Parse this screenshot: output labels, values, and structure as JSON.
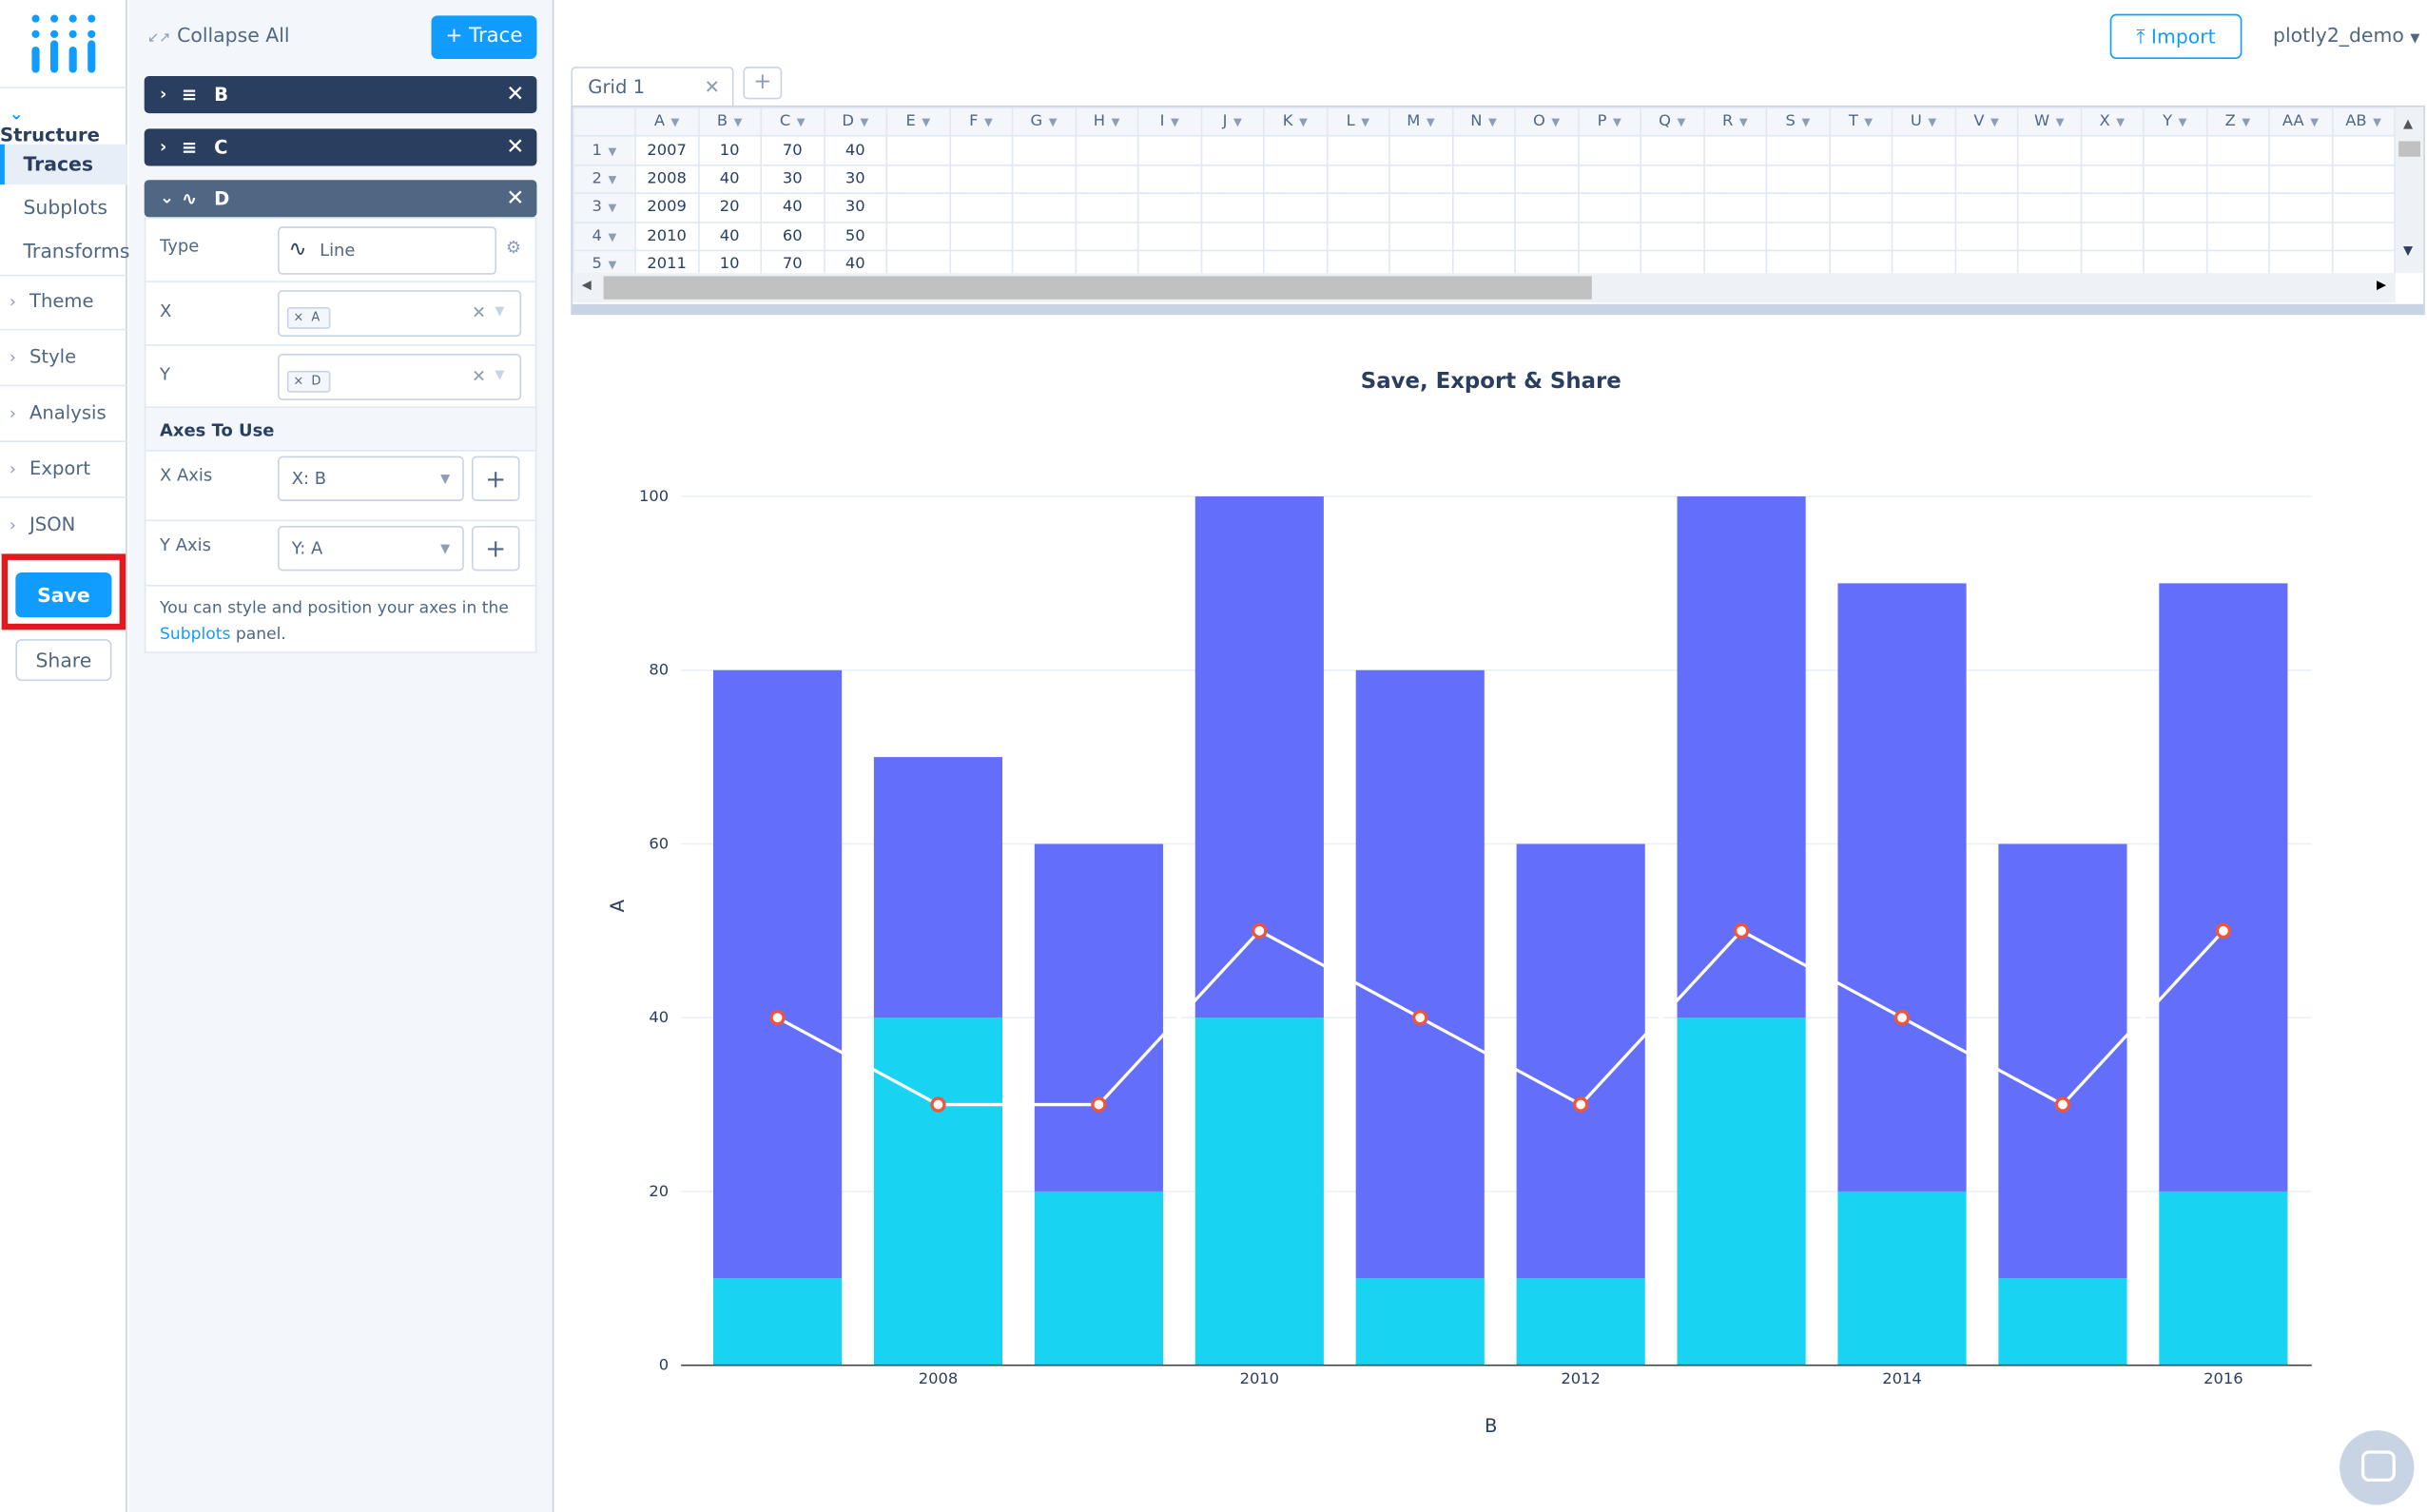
{
  "nav": {
    "structure_label": "Structure",
    "items": [
      {
        "label": "Traces",
        "active": true
      },
      {
        "label": "Subplots",
        "active": false
      },
      {
        "label": "Transforms",
        "active": false
      }
    ],
    "sections": [
      "Theme",
      "Style",
      "Analysis",
      "Export",
      "JSON"
    ],
    "save_label": "Save",
    "share_label": "Share"
  },
  "panel": {
    "collapse_label": "Collapse All",
    "add_trace_label": "+ Trace",
    "traces": [
      {
        "name": "B",
        "icon": "bar-chart-icon",
        "open": false
      },
      {
        "name": "C",
        "icon": "bar-chart-icon",
        "open": false
      },
      {
        "name": "D",
        "icon": "line-chart-icon",
        "open": true
      }
    ],
    "type_label": "Type",
    "type_value": "Line",
    "x_label": "X",
    "x_value": "A",
    "y_label": "Y",
    "y_value": "D",
    "axes_section": "Axes To Use",
    "x_axis_label": "X Axis",
    "x_axis_value": "X: B",
    "y_axis_label": "Y Axis",
    "y_axis_value": "Y: A",
    "hint_text": "You can style and position your axes in the",
    "hint_link": "Subplots",
    "hint_end": "panel."
  },
  "header": {
    "import_label": "Import",
    "user": "plotly2_demo"
  },
  "grid": {
    "tab_label": "Grid 1",
    "columns": [
      "A",
      "B",
      "C",
      "D",
      "E",
      "F",
      "G",
      "H",
      "I",
      "J",
      "K",
      "L",
      "M",
      "N",
      "O",
      "P",
      "Q",
      "R",
      "S",
      "T",
      "U",
      "V",
      "W",
      "X",
      "Y",
      "Z",
      "AA",
      "AB"
    ],
    "rows": [
      [
        "1",
        "2007",
        "10",
        "70",
        "40"
      ],
      [
        "2",
        "2008",
        "40",
        "30",
        "30"
      ],
      [
        "3",
        "2009",
        "20",
        "40",
        "30"
      ],
      [
        "4",
        "2010",
        "40",
        "60",
        "50"
      ],
      [
        "5",
        "2011",
        "10",
        "70",
        "40"
      ]
    ]
  },
  "chart_data": {
    "type": "bar",
    "title": "Save, Export & Share",
    "xlabel": "B",
    "ylabel": "A",
    "x": [
      2007,
      2008,
      2009,
      2010,
      2011,
      2012,
      2013,
      2014,
      2015,
      2016
    ],
    "xticks": [
      2008,
      2010,
      2012,
      2014,
      2016
    ],
    "yticks": [
      0,
      20,
      40,
      60,
      80,
      100
    ],
    "ylim": [
      0,
      100
    ],
    "barmode": "stack",
    "series": [
      {
        "type": "bar",
        "values": [
          10,
          40,
          20,
          40,
          10,
          10,
          40,
          20,
          10,
          20
        ],
        "color": "#19d3f3"
      },
      {
        "type": "bar",
        "values": [
          70,
          30,
          40,
          60,
          70,
          50,
          60,
          70,
          50,
          70
        ],
        "color": "#636efa"
      },
      {
        "type": "line",
        "values": [
          40,
          30,
          30,
          50,
          40,
          30,
          50,
          40,
          30,
          50
        ],
        "color": "#ffffff",
        "marker": "#ef553b"
      }
    ]
  }
}
